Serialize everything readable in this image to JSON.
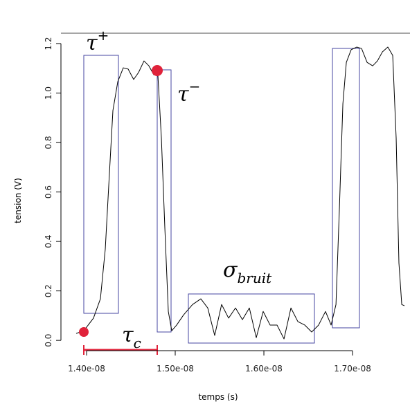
{
  "chart_data": {
    "type": "line",
    "xlabel": "temps (s)",
    "ylabel": "tension (V)",
    "color": "#000000",
    "x": [
      1.3883e-08,
      1.3969e-08,
      1.4078e-08,
      1.4156e-08,
      1.4211e-08,
      1.4258e-08,
      1.4297e-08,
      1.4352e-08,
      1.4414e-08,
      1.4469e-08,
      1.4531e-08,
      1.4586e-08,
      1.4648e-08,
      1.4703e-08,
      1.4758e-08,
      1.4805e-08,
      1.4844e-08,
      1.4883e-08,
      1.4922e-08,
      1.4961e-08,
      1.5016e-08,
      1.5094e-08,
      1.5195e-08,
      1.5289e-08,
      1.5367e-08,
      1.5445e-08,
      1.5523e-08,
      1.5602e-08,
      1.568e-08,
      1.5758e-08,
      1.5836e-08,
      1.5914e-08,
      1.5992e-08,
      1.607e-08,
      1.6148e-08,
      1.6227e-08,
      1.6305e-08,
      1.6383e-08,
      1.6461e-08,
      1.6539e-08,
      1.6617e-08,
      1.6695e-08,
      1.6758e-08,
      1.6813e-08,
      1.6852e-08,
      1.6891e-08,
      1.693e-08,
      1.6984e-08,
      1.7047e-08,
      1.7102e-08,
      1.7164e-08,
      1.7227e-08,
      1.7281e-08,
      1.7336e-08,
      1.7398e-08,
      1.7453e-08,
      1.7492e-08,
      1.7523e-08,
      1.7555e-08,
      1.7586e-08
    ],
    "values": [
      0.028,
      0.039,
      0.09,
      0.168,
      0.369,
      0.677,
      0.929,
      1.046,
      1.102,
      1.097,
      1.055,
      1.083,
      1.13,
      1.11,
      1.074,
      1.069,
      0.817,
      0.453,
      0.117,
      0.039,
      0.062,
      0.103,
      0.145,
      0.168,
      0.131,
      0.02,
      0.145,
      0.09,
      0.131,
      0.084,
      0.131,
      0.011,
      0.117,
      0.062,
      0.062,
      0.006,
      0.131,
      0.076,
      0.062,
      0.034,
      0.062,
      0.117,
      0.062,
      0.145,
      0.537,
      0.957,
      1.124,
      1.175,
      1.186,
      1.18,
      1.124,
      1.11,
      1.13,
      1.166,
      1.186,
      1.152,
      0.817,
      0.313,
      0.145,
      0.14
    ],
    "xlim": [
      1.3711e-08,
      1.7648e-08
    ],
    "ylim": [
      -0.036,
      1.242
    ],
    "xticks": [
      {
        "value": 1.4e-08,
        "label": "1.40e-08"
      },
      {
        "value": 1.5e-08,
        "label": "1.50e-08"
      },
      {
        "value": 1.6e-08,
        "label": "1.60e-08"
      },
      {
        "value": 1.7e-08,
        "label": "1.70e-08"
      }
    ],
    "yticks": [
      {
        "value": 0,
        "label": "0.0"
      },
      0.2,
      0.4,
      0.6,
      0.8,
      {
        "value": 1,
        "label": "1.0"
      },
      1.2
    ],
    "annotations": {
      "tau_plus": {
        "symbol": "τ",
        "sup": "+"
      },
      "tau_minus": {
        "symbol": "τ",
        "sup": "−"
      },
      "sigma_bruit": {
        "symbol": "σ",
        "sub": "bruit"
      },
      "tau_c": {
        "symbol": "τ",
        "sub": "c"
      }
    }
  }
}
